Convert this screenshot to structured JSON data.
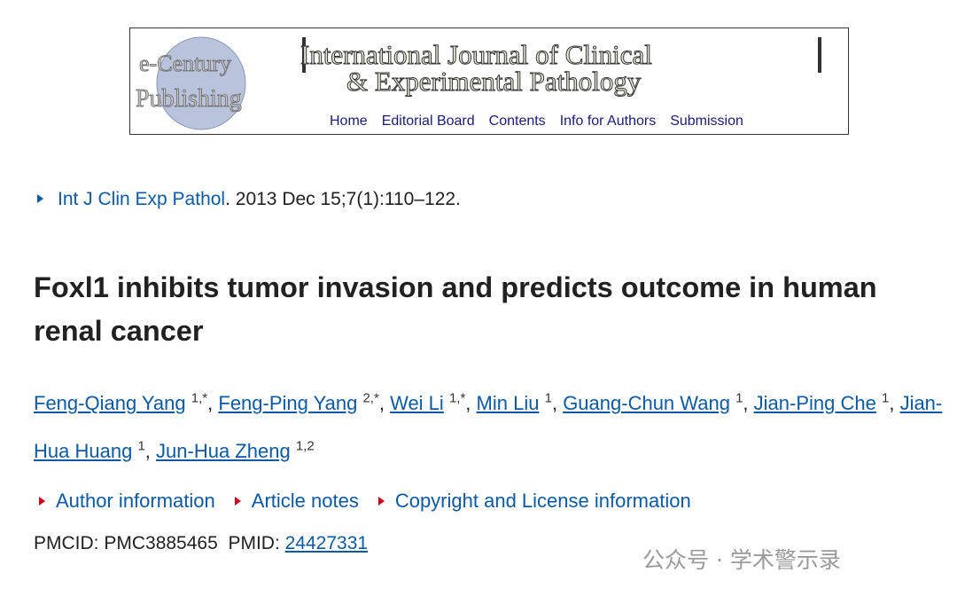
{
  "banner": {
    "publisher_line1": "e-Century",
    "publisher_line2": "Publishing",
    "journal_line1": "International Journal of Clinical",
    "journal_line2": "& Experimental Pathology",
    "nav": [
      "Home",
      "Editorial Board",
      "Contents",
      "Info for Authors",
      "Submission"
    ]
  },
  "citation": {
    "journal": "Int J Clin Exp Pathol",
    "details": ". 2013 Dec 15;7(1):110–122."
  },
  "article": {
    "title": "Foxl1 inhibits tumor invasion and predicts outcome in human renal cancer",
    "authors": [
      {
        "name": "Feng-Qiang Yang",
        "affil": "1,*"
      },
      {
        "name": "Feng-Ping Yang",
        "affil": "2,*"
      },
      {
        "name": "Wei Li",
        "affil": "1,*"
      },
      {
        "name": "Min Liu",
        "affil": "1"
      },
      {
        "name": "Guang-Chun Wang",
        "affil": "1"
      },
      {
        "name": "Jian-Ping Che",
        "affil": "1"
      },
      {
        "name": "Jian-Hua Huang",
        "affil": "1"
      },
      {
        "name": "Jun-Hua Zheng",
        "affil": "1,2"
      }
    ],
    "links": [
      "Author information",
      "Article notes",
      "Copyright and License information"
    ],
    "ids": {
      "pmcid_label": "PMCID:",
      "pmcid": "PMC3885465",
      "pmid_label": "PMID:",
      "pmid": "24427331"
    }
  },
  "watermark": "公众号 · 学术警示录"
}
